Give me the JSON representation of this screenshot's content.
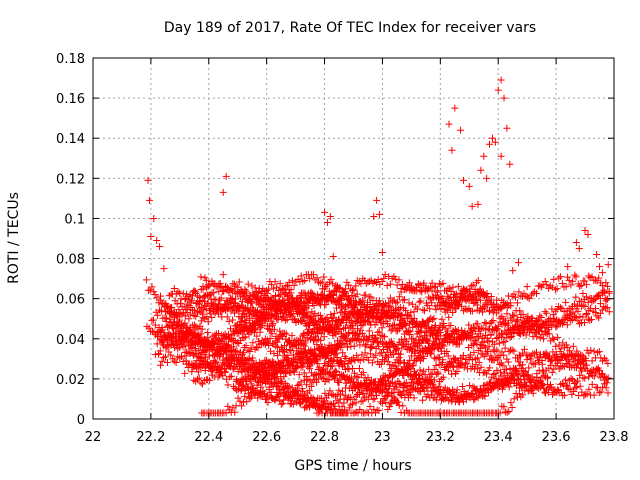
{
  "chart_data": {
    "type": "scatter",
    "title": "Day 189 of 2017, Rate Of TEC Index for receiver vars",
    "xlabel": "GPS time / hours",
    "ylabel": "ROTI / TECUs",
    "xlim": [
      22,
      23.8
    ],
    "ylim": [
      0,
      0.18
    ],
    "xticks": [
      "22",
      "22.2",
      "22.4",
      "22.6",
      "22.8",
      "23",
      "23.2",
      "23.4",
      "23.6",
      "23.8"
    ],
    "yticks": [
      "0",
      "0.02",
      "0.04",
      "0.06",
      "0.08",
      "0.1",
      "0.12",
      "0.14",
      "0.16",
      "0.18"
    ],
    "grid": true,
    "marker": "plus",
    "color": "#ff0000",
    "notable_points": [
      [
        22.19,
        0.119
      ],
      [
        22.195,
        0.109
      ],
      [
        22.21,
        0.1
      ],
      [
        22.2,
        0.091
      ],
      [
        22.22,
        0.089
      ],
      [
        22.23,
        0.086
      ],
      [
        22.245,
        0.075
      ],
      [
        22.46,
        0.121
      ],
      [
        22.45,
        0.113
      ],
      [
        22.45,
        0.072
      ],
      [
        22.8,
        0.103
      ],
      [
        22.81,
        0.098
      ],
      [
        22.82,
        0.101
      ],
      [
        22.83,
        0.081
      ],
      [
        22.98,
        0.109
      ],
      [
        22.97,
        0.101
      ],
      [
        22.99,
        0.102
      ],
      [
        23.0,
        0.083
      ],
      [
        23.23,
        0.147
      ],
      [
        23.25,
        0.155
      ],
      [
        23.27,
        0.144
      ],
      [
        23.24,
        0.134
      ],
      [
        23.28,
        0.119
      ],
      [
        23.3,
        0.116
      ],
      [
        23.31,
        0.106
      ],
      [
        23.33,
        0.107
      ],
      [
        23.34,
        0.124
      ],
      [
        23.35,
        0.131
      ],
      [
        23.36,
        0.12
      ],
      [
        23.37,
        0.137
      ],
      [
        23.38,
        0.14
      ],
      [
        23.39,
        0.138
      ],
      [
        23.4,
        0.164
      ],
      [
        23.41,
        0.169
      ],
      [
        23.42,
        0.16
      ],
      [
        23.43,
        0.145
      ],
      [
        23.44,
        0.127
      ],
      [
        23.41,
        0.131
      ],
      [
        23.45,
        0.074
      ],
      [
        23.47,
        0.078
      ],
      [
        23.5,
        0.066
      ],
      [
        23.64,
        0.076
      ],
      [
        23.67,
        0.088
      ],
      [
        23.68,
        0.085
      ],
      [
        23.7,
        0.094
      ],
      [
        23.71,
        0.092
      ],
      [
        23.74,
        0.082
      ],
      [
        23.75,
        0.076
      ],
      [
        23.76,
        0.073
      ],
      [
        23.78,
        0.077
      ]
    ],
    "bulk_cloud": {
      "x_range": [
        22.18,
        23.79
      ],
      "y_range": [
        0.003,
        0.072
      ],
      "description_of_density": "dense band of points between 0.005 and 0.07 across the full time range"
    }
  }
}
